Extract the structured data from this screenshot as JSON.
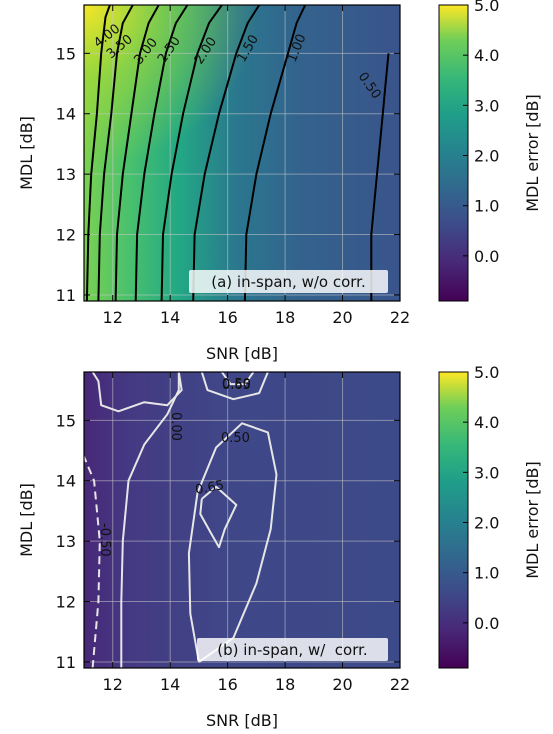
{
  "chart_data": [
    {
      "type": "heatmap",
      "panel_label": "(a) in-span, w/o corr.",
      "xlabel": "SNR [dB]",
      "ylabel": "MDL [dB]",
      "xlim": [
        11,
        22
      ],
      "ylim": [
        10.9,
        15.8
      ],
      "xticks": [
        12,
        14,
        16,
        18,
        20,
        22
      ],
      "yticks": [
        11,
        12,
        13,
        14,
        15
      ],
      "grid": true,
      "colorbar": {
        "label": "MDL error [dB]",
        "range": [
          -0.9,
          5.0
        ],
        "ticks": [
          "5.0",
          "4.0",
          "3.0",
          "2.0",
          "1.0",
          "0.0"
        ],
        "colormap": "viridis"
      },
      "contour_lines": [
        {
          "level": "4.00",
          "points": [
            [
              11.1,
              10.9
            ],
            [
              11.15,
              12.0
            ],
            [
              11.25,
              13.0
            ],
            [
              11.45,
              14.0
            ],
            [
              11.6,
              15.0
            ],
            [
              11.75,
              15.6
            ],
            [
              11.9,
              15.8
            ]
          ]
        },
        {
          "level": "3.50",
          "points": [
            [
              11.5,
              10.9
            ],
            [
              11.55,
              12.0
            ],
            [
              11.7,
              13.0
            ],
            [
              11.95,
              14.0
            ],
            [
              12.15,
              15.0
            ],
            [
              12.35,
              15.5
            ],
            [
              12.7,
              15.8
            ]
          ]
        },
        {
          "level": "3.00",
          "points": [
            [
              12.1,
              10.9
            ],
            [
              12.15,
              12.0
            ],
            [
              12.35,
              13.0
            ],
            [
              12.65,
              14.0
            ],
            [
              12.95,
              15.0
            ],
            [
              13.25,
              15.5
            ],
            [
              13.6,
              15.8
            ]
          ]
        },
        {
          "level": "2.50",
          "points": [
            [
              12.8,
              10.9
            ],
            [
              12.85,
              12.0
            ],
            [
              13.1,
              13.0
            ],
            [
              13.45,
              14.0
            ],
            [
              13.85,
              15.0
            ],
            [
              14.2,
              15.5
            ],
            [
              14.6,
              15.8
            ]
          ]
        },
        {
          "level": "2.00",
          "points": [
            [
              13.7,
              10.9
            ],
            [
              13.75,
              12.0
            ],
            [
              14.05,
              13.0
            ],
            [
              14.45,
              14.0
            ],
            [
              14.95,
              15.0
            ],
            [
              15.35,
              15.5
            ],
            [
              15.8,
              15.8
            ]
          ]
        },
        {
          "level": "1.50",
          "points": [
            [
              14.8,
              10.9
            ],
            [
              14.85,
              12.0
            ],
            [
              15.2,
              13.0
            ],
            [
              15.7,
              14.0
            ],
            [
              16.3,
              15.0
            ],
            [
              16.7,
              15.5
            ],
            [
              17.1,
              15.8
            ]
          ]
        },
        {
          "level": "1.00",
          "points": [
            [
              16.6,
              10.9
            ],
            [
              16.65,
              12.0
            ],
            [
              17.0,
              13.0
            ],
            [
              17.5,
              14.0
            ],
            [
              18.1,
              15.0
            ],
            [
              18.4,
              15.5
            ],
            [
              18.7,
              15.8
            ]
          ]
        },
        {
          "level": "0.50",
          "points": [
            [
              21.0,
              10.9
            ],
            [
              21.0,
              12.0
            ],
            [
              21.2,
              13.0
            ],
            [
              21.4,
              14.0
            ],
            [
              21.5,
              14.5
            ],
            [
              21.6,
              15.0
            ]
          ]
        }
      ]
    },
    {
      "type": "heatmap",
      "panel_label": "(b) in-span, w/  corr.",
      "xlabel": "SNR [dB]",
      "ylabel": "MDL [dB]",
      "xlim": [
        11,
        22
      ],
      "ylim": [
        10.9,
        15.8
      ],
      "xticks": [
        12,
        14,
        16,
        18,
        20,
        22
      ],
      "yticks": [
        11,
        12,
        13,
        14,
        15
      ],
      "grid": true,
      "colorbar": {
        "label": "MDL error [dB]",
        "range": [
          -0.9,
          5.0
        ],
        "ticks": [
          "5.0",
          "4.0",
          "3.0",
          "2.0",
          "1.0",
          "0.0"
        ],
        "colormap": "viridis"
      },
      "contour_lines": [
        {
          "level": "0.00",
          "points": [
            [
              12.3,
              10.9
            ],
            [
              12.3,
              12.0
            ],
            [
              12.35,
              13.0
            ],
            [
              12.55,
              14.0
            ],
            [
              13.1,
              14.6
            ],
            [
              13.9,
              15.1
            ],
            [
              14.3,
              15.5
            ],
            [
              14.3,
              15.8
            ]
          ]
        },
        {
          "level": "0.00",
          "points": [
            [
              14.3,
              15.8
            ],
            [
              14.4,
              15.5
            ],
            [
              13.9,
              15.25
            ],
            [
              13.1,
              15.3
            ],
            [
              12.2,
              15.15
            ],
            [
              11.6,
              15.25
            ],
            [
              11.5,
              15.65
            ],
            [
              11.3,
              15.8
            ]
          ]
        },
        {
          "level": "-0.50",
          "dashed": true,
          "points": [
            [
              11.3,
              10.9
            ],
            [
              11.5,
              12.0
            ],
            [
              11.55,
              13.0
            ],
            [
              11.35,
              14.0
            ],
            [
              11.0,
              14.4
            ]
          ]
        },
        {
          "level": "0.50",
          "points": [
            [
              15.0,
              11.0
            ],
            [
              14.7,
              11.8
            ],
            [
              14.65,
              12.8
            ],
            [
              14.95,
              13.8
            ],
            [
              15.6,
              14.55
            ],
            [
              16.5,
              14.95
            ],
            [
              17.4,
              14.8
            ],
            [
              17.7,
              14.1
            ],
            [
              17.5,
              13.2
            ],
            [
              17.0,
              12.3
            ],
            [
              16.2,
              11.4
            ],
            [
              15.0,
              11.0
            ]
          ]
        },
        {
          "level": "0.65",
          "points": [
            [
              15.1,
              13.7
            ],
            [
              15.6,
              13.9
            ],
            [
              16.3,
              13.6
            ],
            [
              15.9,
              13.2
            ],
            [
              15.7,
              12.9
            ],
            [
              15.4,
              13.15
            ],
            [
              15.05,
              13.45
            ],
            [
              15.1,
              13.7
            ]
          ]
        },
        {
          "level": "0.50",
          "points": [
            [
              15.1,
              15.8
            ],
            [
              15.3,
              15.5
            ],
            [
              16.2,
              15.35
            ],
            [
              17.1,
              15.45
            ],
            [
              17.4,
              15.8
            ]
          ]
        },
        {
          "level": "0.65",
          "points": [
            [
              15.8,
              15.8
            ],
            [
              16.1,
              15.6
            ],
            [
              16.6,
              15.6
            ],
            [
              16.9,
              15.8
            ]
          ]
        }
      ],
      "contour_labels": [
        "0.65",
        "0.50",
        "0.00",
        "0.50",
        "0.65",
        "-0.50"
      ]
    }
  ]
}
